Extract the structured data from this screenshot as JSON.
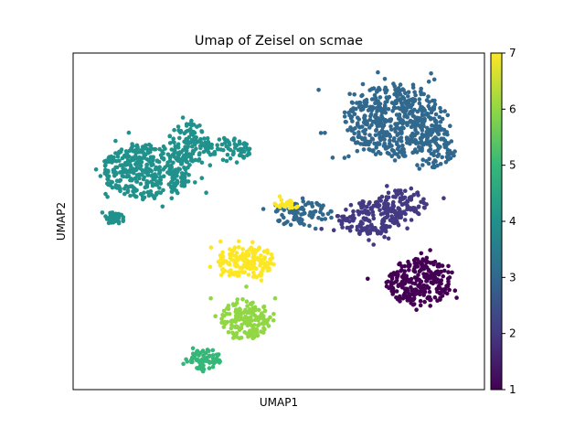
{
  "chart_data": {
    "type": "scatter",
    "title": "Umap of Zeisel on scmae",
    "xlabel": "UMAP1",
    "ylabel": "UMAP2",
    "xticks": "none",
    "yticks": "none",
    "xlim": [
      0,
      100
    ],
    "ylim": [
      0,
      100
    ],
    "colormap": "viridis",
    "colorbar": {
      "min": 1,
      "max": 7,
      "ticks": [
        "1",
        "2",
        "3",
        "4",
        "5",
        "6",
        "7"
      ]
    },
    "grid": false,
    "clusters": [
      {
        "value": 4,
        "label": "4",
        "center": [
          18,
          65
        ],
        "radius": [
          11,
          8
        ],
        "count": 420
      },
      {
        "value": 4,
        "label": "4",
        "center": [
          28,
          73
        ],
        "radius": [
          5,
          6
        ],
        "count": 110
      },
      {
        "value": 4,
        "label": "4",
        "center": [
          10,
          51
        ],
        "radius": [
          2.5,
          2
        ],
        "count": 40
      },
      {
        "value": 4,
        "label": "4",
        "center": [
          38,
          71
        ],
        "radius": [
          5,
          4
        ],
        "count": 60
      },
      {
        "value": 3,
        "label": "3",
        "center": [
          78,
          80
        ],
        "radius": [
          12,
          11
        ],
        "count": 520
      },
      {
        "value": 3,
        "label": "3",
        "center": [
          88,
          72
        ],
        "radius": [
          5,
          6
        ],
        "count": 80
      },
      {
        "value": 3,
        "label": "3",
        "center": [
          56,
          52
        ],
        "radius": [
          7,
          4
        ],
        "count": 90
      },
      {
        "value": 2,
        "label": "2",
        "center": [
          72,
          51
        ],
        "radius": [
          8,
          5
        ],
        "count": 150
      },
      {
        "value": 2,
        "label": "2",
        "center": [
          80,
          55
        ],
        "radius": [
          6,
          5
        ],
        "count": 110
      },
      {
        "value": 1,
        "label": "1",
        "center": [
          84,
          32
        ],
        "radius": [
          8,
          7
        ],
        "count": 260
      },
      {
        "value": 7,
        "label": "7",
        "center": [
          42,
          38
        ],
        "radius": [
          7,
          5
        ],
        "count": 170
      },
      {
        "value": 7,
        "label": "7",
        "center": [
          52,
          55
        ],
        "radius": [
          3,
          1.5
        ],
        "count": 25
      },
      {
        "value": 6,
        "label": "6",
        "center": [
          42,
          21
        ],
        "radius": [
          6,
          6
        ],
        "count": 170
      },
      {
        "value": 5,
        "label": "5",
        "center": [
          32,
          9
        ],
        "radius": [
          4,
          3
        ],
        "count": 70
      }
    ],
    "seed": 20240521
  }
}
